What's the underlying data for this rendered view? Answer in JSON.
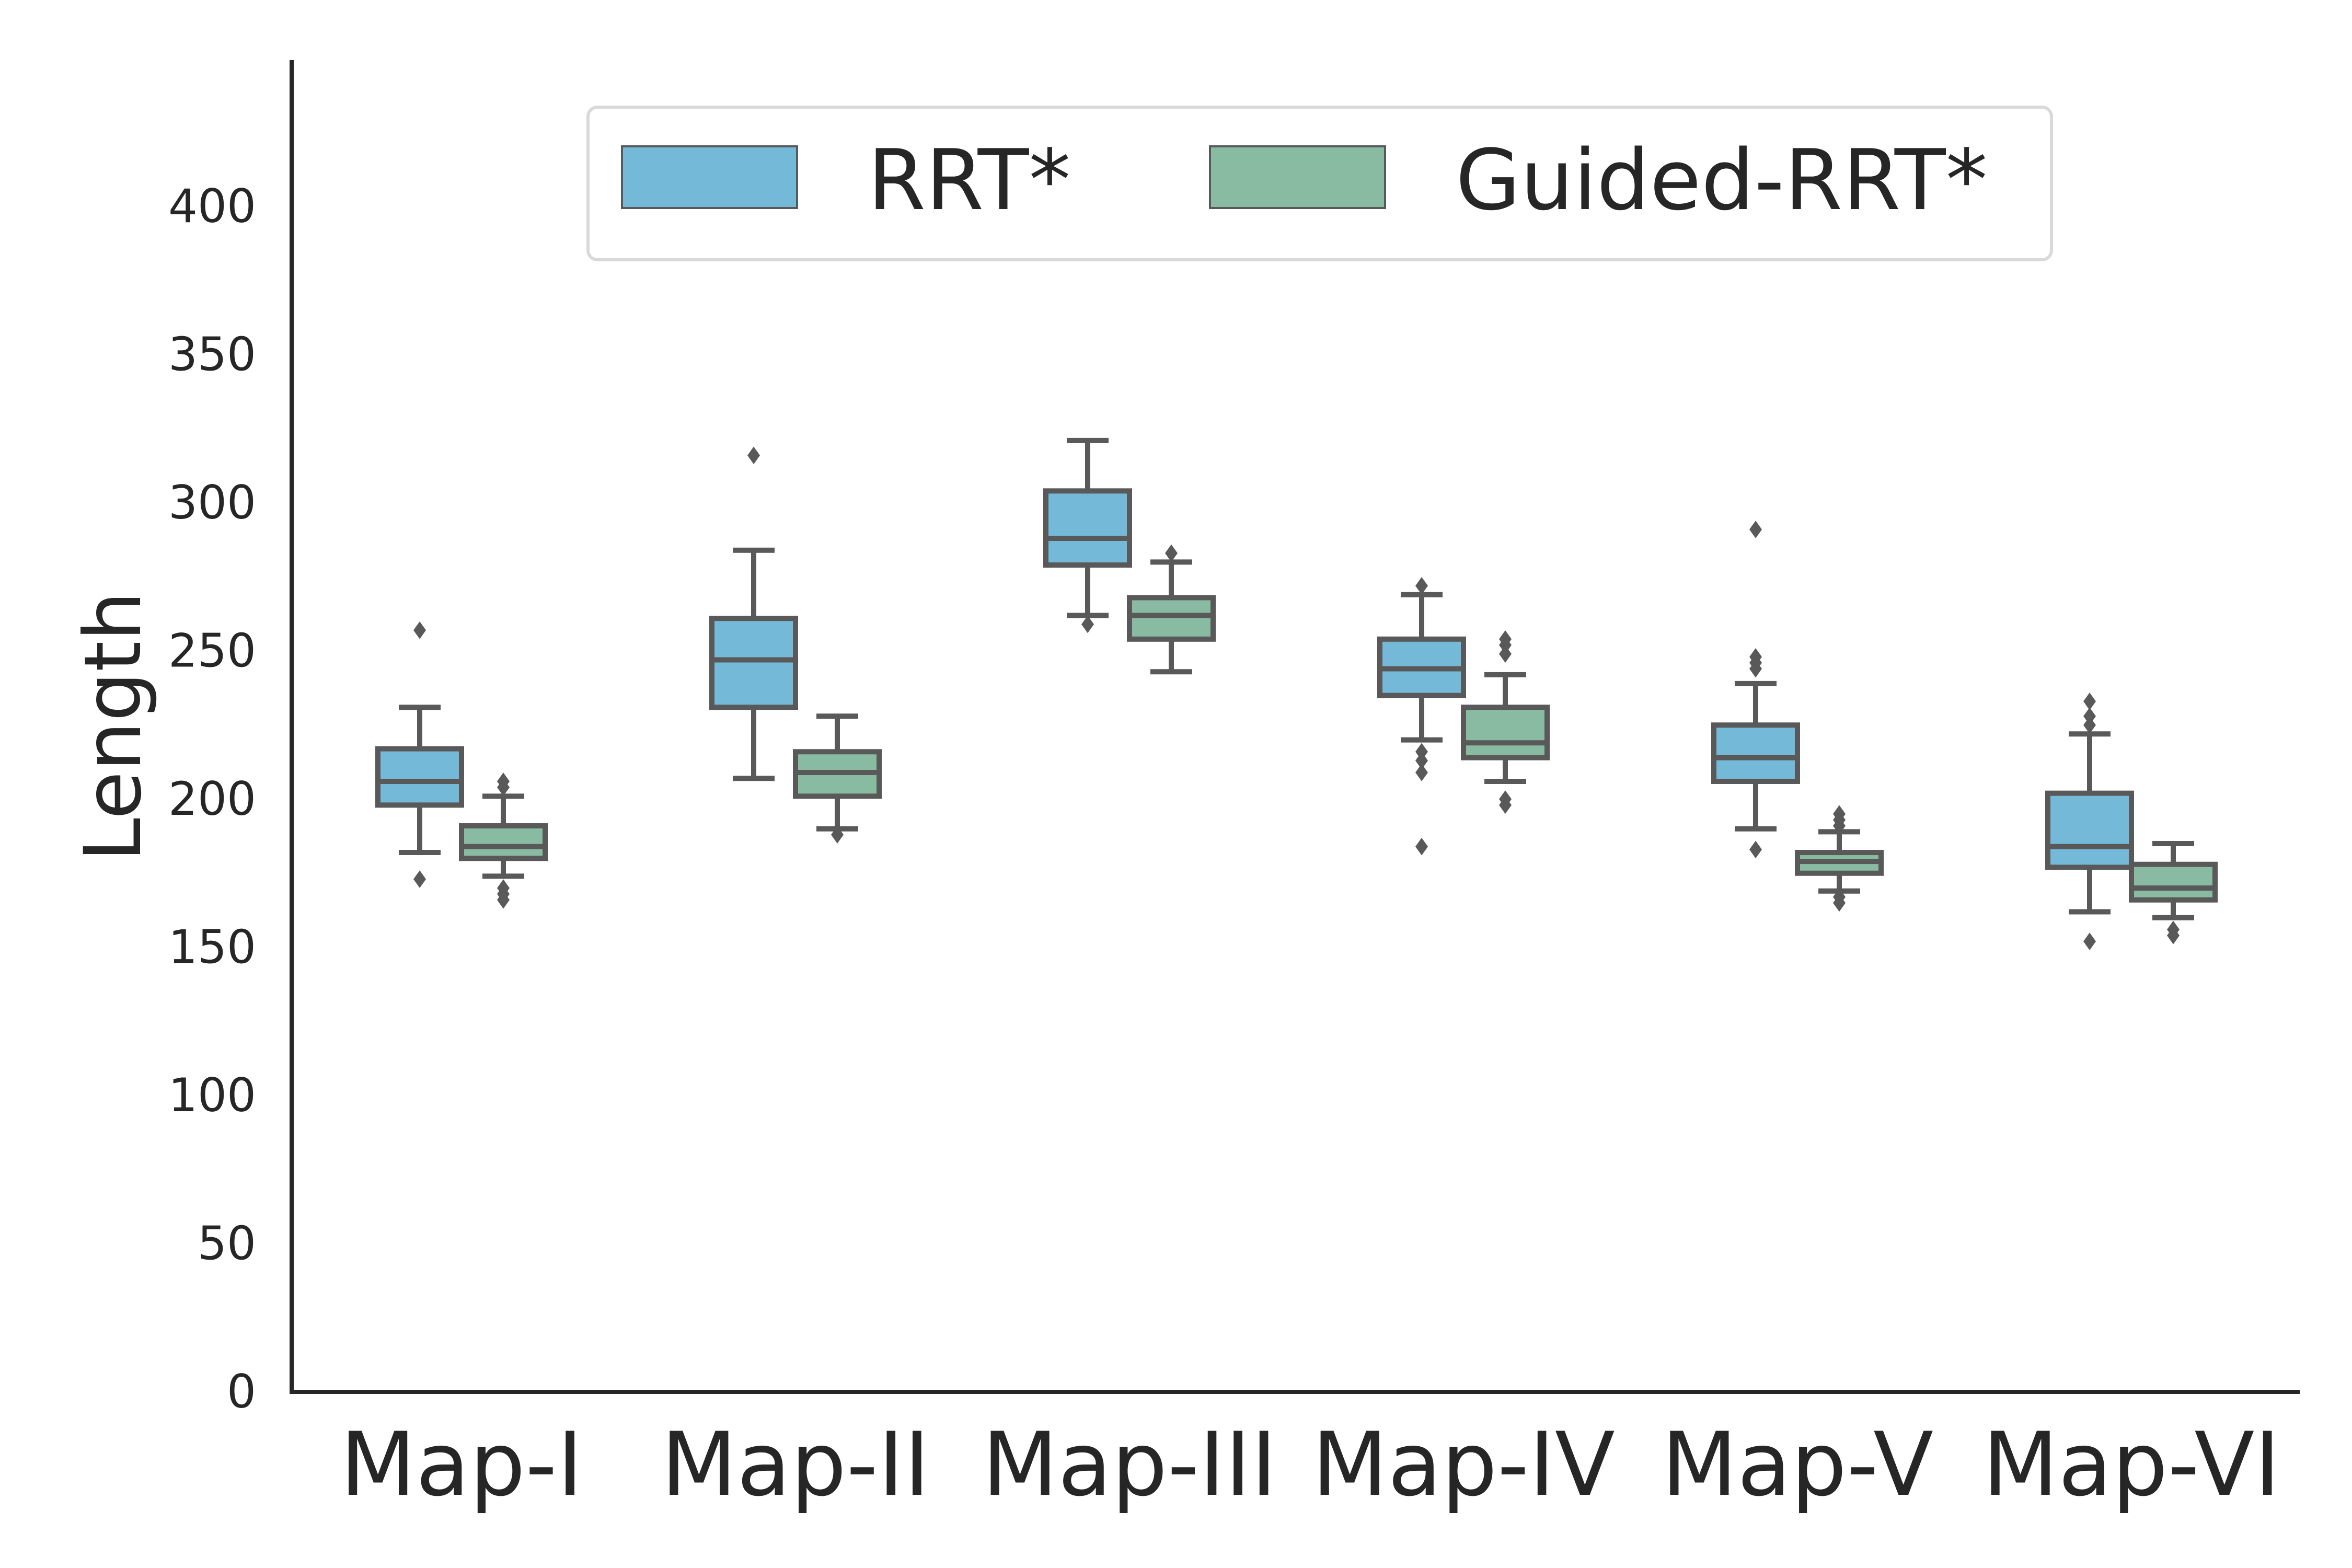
{
  "chart_data": {
    "type": "box",
    "title": "",
    "xlabel": "",
    "ylabel": "Length",
    "ylim": [
      0,
      450
    ],
    "yticks": [
      "0",
      "50",
      "100",
      "150",
      "200",
      "250",
      "300",
      "350",
      "400"
    ],
    "categories": [
      "Map-I",
      "Map-II",
      "Map-III",
      "Map-IV",
      "Map-V",
      "Map-VI"
    ],
    "legend_position": "top-center",
    "series": [
      {
        "name": "RRT*",
        "color": "#74b9d8",
        "boxes": [
          {
            "whislo": 182,
            "q1": 198,
            "med": 206,
            "q3": 217,
            "whishi": 231,
            "fliers": [
              173,
              257
            ]
          },
          {
            "whislo": 207,
            "q1": 231,
            "med": 247,
            "q3": 261,
            "whishi": 284,
            "fliers": [
              316
            ]
          },
          {
            "whislo": 262,
            "q1": 279,
            "med": 288,
            "q3": 304,
            "whishi": 321,
            "fliers": [
              259
            ]
          },
          {
            "whislo": 220,
            "q1": 235,
            "med": 244,
            "q3": 254,
            "whishi": 269,
            "fliers": [
              209,
              213,
              216,
              272,
              184
            ]
          },
          {
            "whislo": 190,
            "q1": 206,
            "med": 214,
            "q3": 225,
            "whishi": 239,
            "fliers": [
              183,
              244,
              246,
              248,
              291
            ]
          },
          {
            "whislo": 162,
            "q1": 177,
            "med": 184,
            "q3": 202,
            "whishi": 222,
            "fliers": [
              152,
              225,
              228,
              233
            ]
          }
        ]
      },
      {
        "name": "Guided-RRT*",
        "color": "#88bba2",
        "boxes": [
          {
            "whislo": 174,
            "q1": 180,
            "med": 184,
            "q3": 191,
            "whishi": 201,
            "fliers": [
              166,
              168,
              170,
              204,
              206
            ]
          },
          {
            "whislo": 190,
            "q1": 201,
            "med": 209,
            "q3": 216,
            "whishi": 228,
            "fliers": [
              188
            ]
          },
          {
            "whislo": 243,
            "q1": 254,
            "med": 262,
            "q3": 268,
            "whishi": 280,
            "fliers": [
              283
            ]
          },
          {
            "whislo": 206,
            "q1": 214,
            "med": 219,
            "q3": 231,
            "whishi": 242,
            "fliers": [
              198,
              200,
              249,
              252,
              254
            ]
          },
          {
            "whislo": 169,
            "q1": 175,
            "med": 179,
            "q3": 182,
            "whishi": 189,
            "fliers": [
              165,
              167,
              191,
              193,
              195
            ]
          },
          {
            "whislo": 160,
            "q1": 166,
            "med": 170,
            "q3": 178,
            "whishi": 185,
            "fliers": [
              154,
              156
            ]
          }
        ]
      }
    ]
  }
}
